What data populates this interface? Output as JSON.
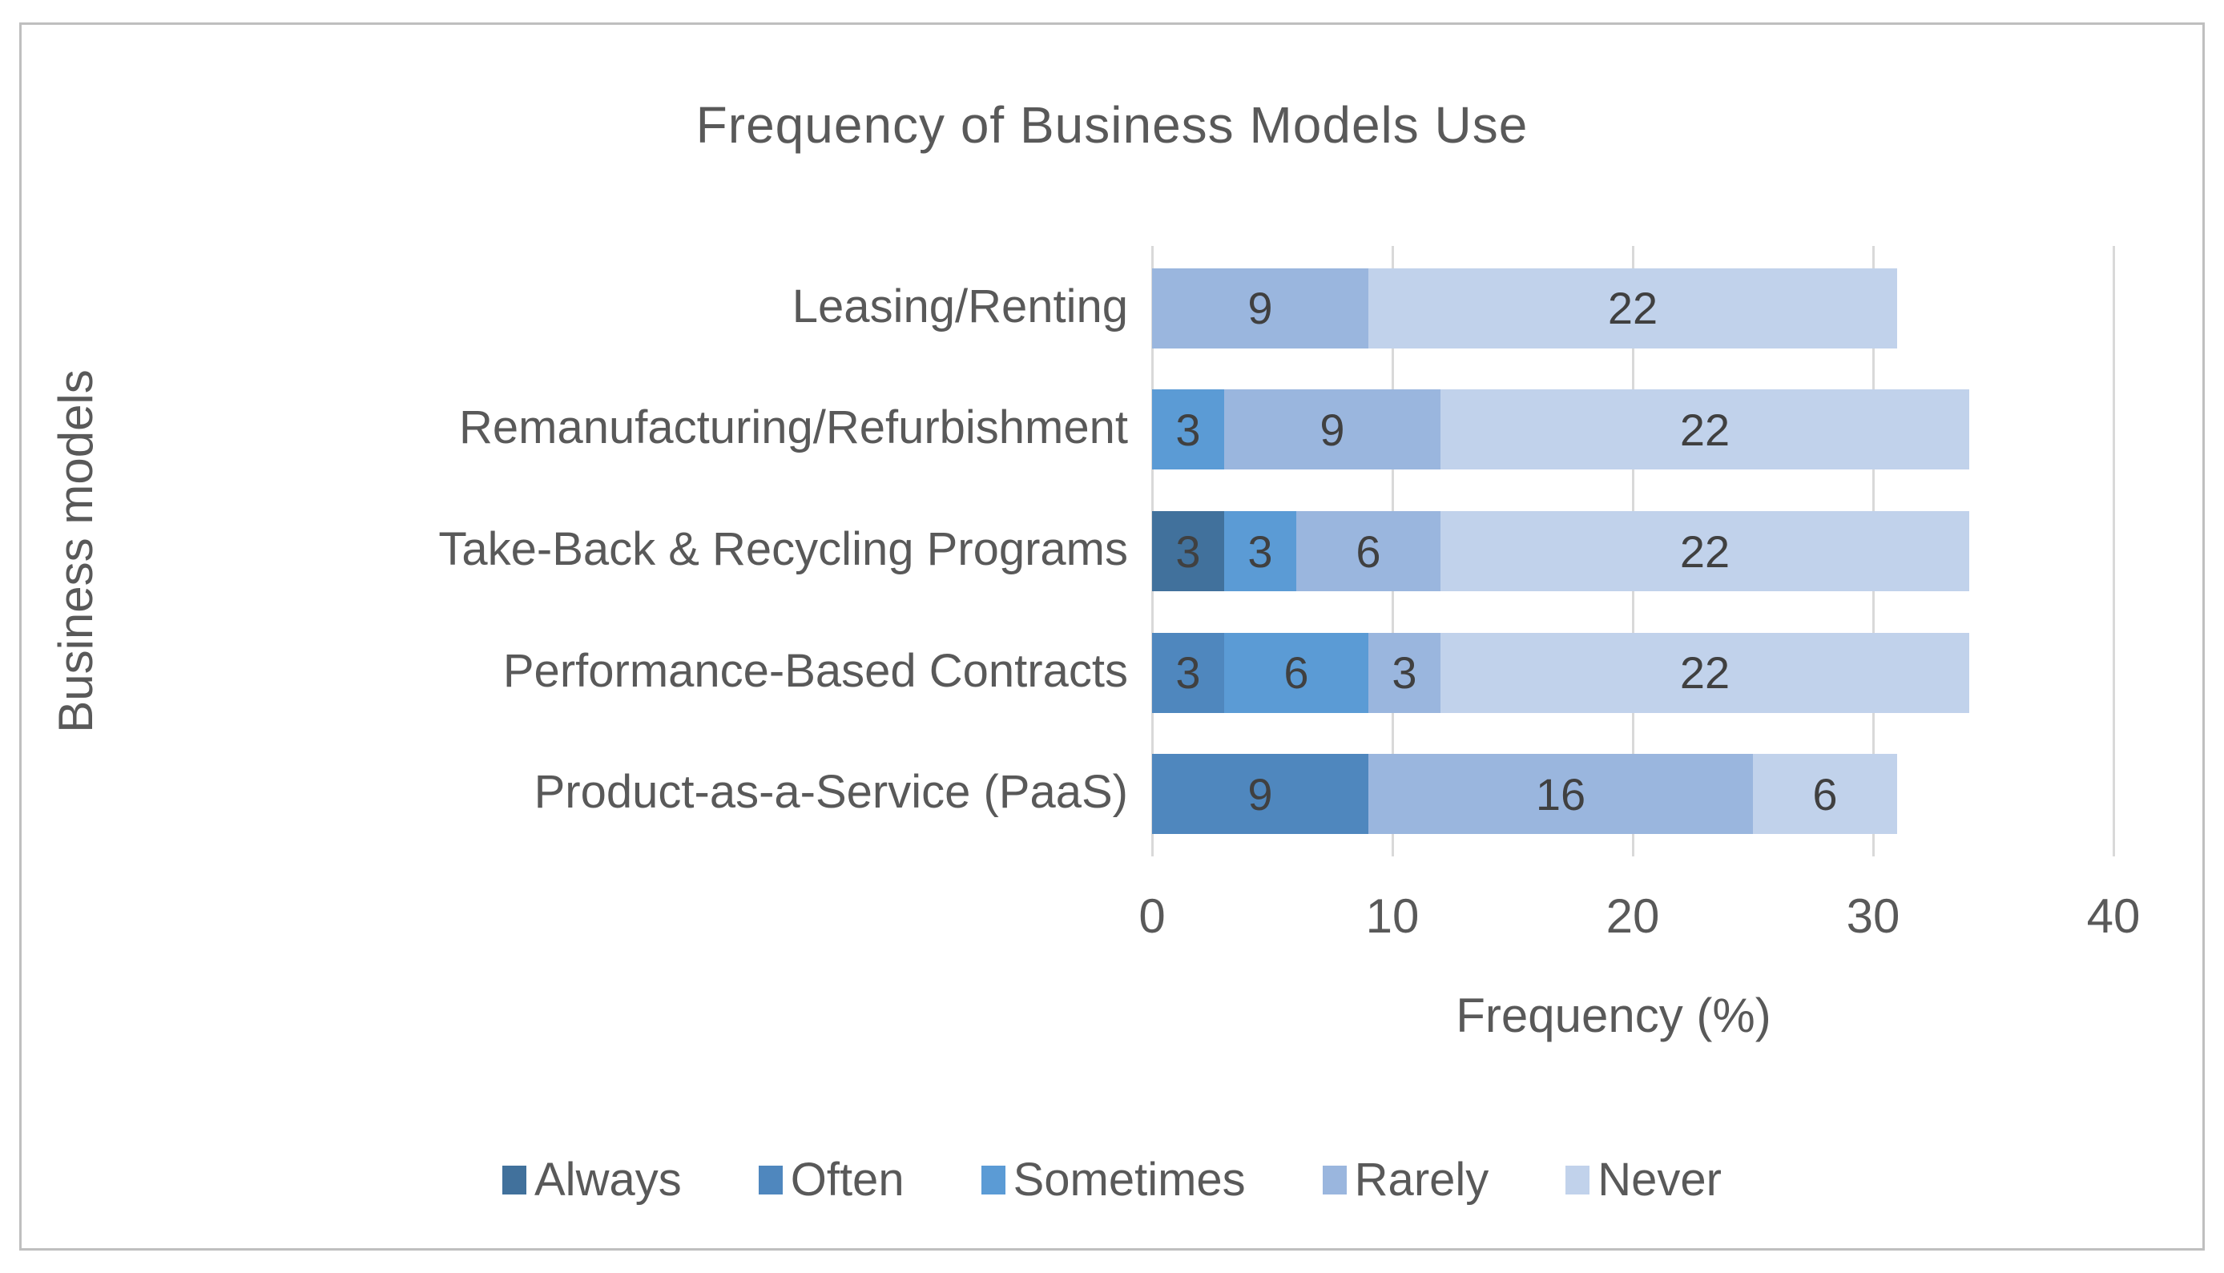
{
  "title": "Frequency of Business Models Use",
  "x_axis": {
    "title": "Frequency (%)",
    "ticks": [
      "0",
      "10",
      "20",
      "30",
      "40"
    ],
    "min": 0,
    "max": 40,
    "step": 10
  },
  "y_axis": {
    "title": "Business models"
  },
  "colors": {
    "always": "#41719C",
    "often": "#4F87BE",
    "sometimes": "#5B9BD5",
    "rarely": "#9AB6DE",
    "never": "#C1D2EB",
    "gridline": "#D9D9D9",
    "text": "#595959",
    "data_label": "#404040"
  },
  "chart_data": {
    "type": "bar",
    "orientation": "horizontal",
    "stacked": true,
    "title": "Frequency of Business Models Use",
    "xlabel": "Frequency (%)",
    "ylabel": "Business models",
    "xlim": [
      0,
      40
    ],
    "grid": true,
    "legend_position": "bottom",
    "categories": [
      "Leasing/Renting",
      "Remanufacturing/Refurbishment",
      "Take-Back & Recycling Programs",
      "Performance-Based Contracts",
      "Product-as-a-Service (PaaS)"
    ],
    "series": [
      {
        "name": "Always",
        "color": "#41719C",
        "values": [
          0,
          0,
          3,
          0,
          0
        ]
      },
      {
        "name": "Often",
        "color": "#4F87BE",
        "values": [
          0,
          0,
          0,
          3,
          9
        ]
      },
      {
        "name": "Sometimes",
        "color": "#5B9BD5",
        "values": [
          0,
          3,
          3,
          6,
          0
        ]
      },
      {
        "name": "Rarely",
        "color": "#9AB6DE",
        "values": [
          9,
          9,
          6,
          3,
          16
        ]
      },
      {
        "name": "Never",
        "color": "#C1D2EB",
        "values": [
          22,
          22,
          22,
          22,
          6
        ]
      }
    ]
  }
}
